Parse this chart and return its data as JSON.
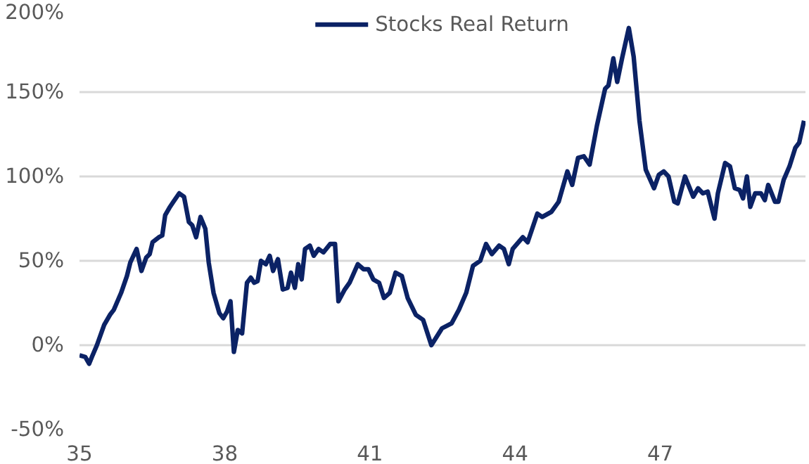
{
  "chart_data": {
    "type": "line",
    "x": [
      35.0,
      35.12,
      35.2,
      35.27,
      35.36,
      35.51,
      35.63,
      35.71,
      35.86,
      35.98,
      36.05,
      36.18,
      36.28,
      36.38,
      36.45,
      36.51,
      36.64,
      36.71,
      36.77,
      36.87,
      36.94,
      37.06,
      37.16,
      37.26,
      37.33,
      37.41,
      37.5,
      37.6,
      37.67,
      37.77,
      37.89,
      37.97,
      38.05,
      38.12,
      38.19,
      38.27,
      38.36,
      38.46,
      38.54,
      38.61,
      38.68,
      38.75,
      38.85,
      38.93,
      39.0,
      39.1,
      39.2,
      39.3,
      39.37,
      39.45,
      39.52,
      39.59,
      39.66,
      39.76,
      39.84,
      39.94,
      40.04,
      40.18,
      40.28,
      40.35,
      40.48,
      40.58,
      40.75,
      40.87,
      40.97,
      41.07,
      41.19,
      41.29,
      41.41,
      41.53,
      41.66,
      41.78,
      41.95,
      42.1,
      42.27,
      42.49,
      42.69,
      42.84,
      42.99,
      43.13,
      43.28,
      43.4,
      43.52,
      43.67,
      43.77,
      43.87,
      43.95,
      44.16,
      44.26,
      44.46,
      44.56,
      44.75,
      44.9,
      45.08,
      45.18,
      45.3,
      45.42,
      45.54,
      45.69,
      45.86,
      45.93,
      46.03,
      46.11,
      46.21,
      46.35,
      46.45,
      46.57,
      46.7,
      46.87,
      46.97,
      47.07,
      47.17,
      47.29,
      47.36,
      47.51,
      47.68,
      47.78,
      47.88,
      47.98,
      48.12,
      48.19,
      48.34,
      48.44,
      48.54,
      48.64,
      48.71,
      48.79,
      48.86,
      48.96,
      49.08,
      49.16,
      49.23,
      49.37,
      49.44,
      49.55,
      49.67,
      49.79,
      49.87,
      49.97
    ],
    "series": [
      {
        "name": "Stocks Real Return",
        "color": "#0b2265",
        "values": [
          -6,
          -7,
          -11,
          -6,
          0,
          12,
          18,
          21,
          31,
          41,
          49,
          57,
          44,
          52,
          54,
          61,
          64,
          65,
          77,
          82,
          85,
          90,
          88,
          73,
          71,
          64,
          76,
          69,
          49,
          31,
          19,
          16,
          20,
          26,
          -4,
          9,
          7,
          37,
          40,
          37,
          38,
          50,
          48,
          53,
          44,
          51,
          33,
          34,
          43,
          34,
          48,
          39,
          57,
          59,
          53,
          57,
          55,
          60,
          60,
          26,
          33,
          37,
          48,
          45,
          45,
          39,
          37,
          28,
          31,
          43,
          41,
          28,
          18,
          15,
          0,
          10,
          13,
          21,
          31,
          47,
          50,
          60,
          54,
          59,
          57,
          48,
          57,
          64,
          61,
          78,
          76,
          79,
          85,
          103,
          95,
          111,
          112,
          107,
          130,
          152,
          154,
          170,
          156,
          170,
          188,
          171,
          133,
          104,
          93,
          101,
          103,
          100,
          85,
          84,
          100,
          88,
          93,
          90,
          91,
          75,
          90,
          108,
          106,
          93,
          92,
          87,
          100,
          82,
          90,
          90,
          86,
          95,
          85,
          85,
          98,
          106,
          117,
          120,
          133
        ]
      }
    ],
    "xlim": [
      35,
      50
    ],
    "xticks": [
      35,
      38,
      41,
      44,
      47
    ],
    "ylim": [
      -50,
      200
    ],
    "yticks": [
      {
        "value": -50,
        "label": "-50%"
      },
      {
        "value": 0,
        "label": "0%"
      },
      {
        "value": 50,
        "label": "50%"
      },
      {
        "value": 100,
        "label": "100%"
      },
      {
        "value": 150,
        "label": "150%"
      },
      {
        "value": 200,
        "label": "200%"
      }
    ],
    "grid": "y",
    "legend": "top",
    "line_style": "solid"
  }
}
